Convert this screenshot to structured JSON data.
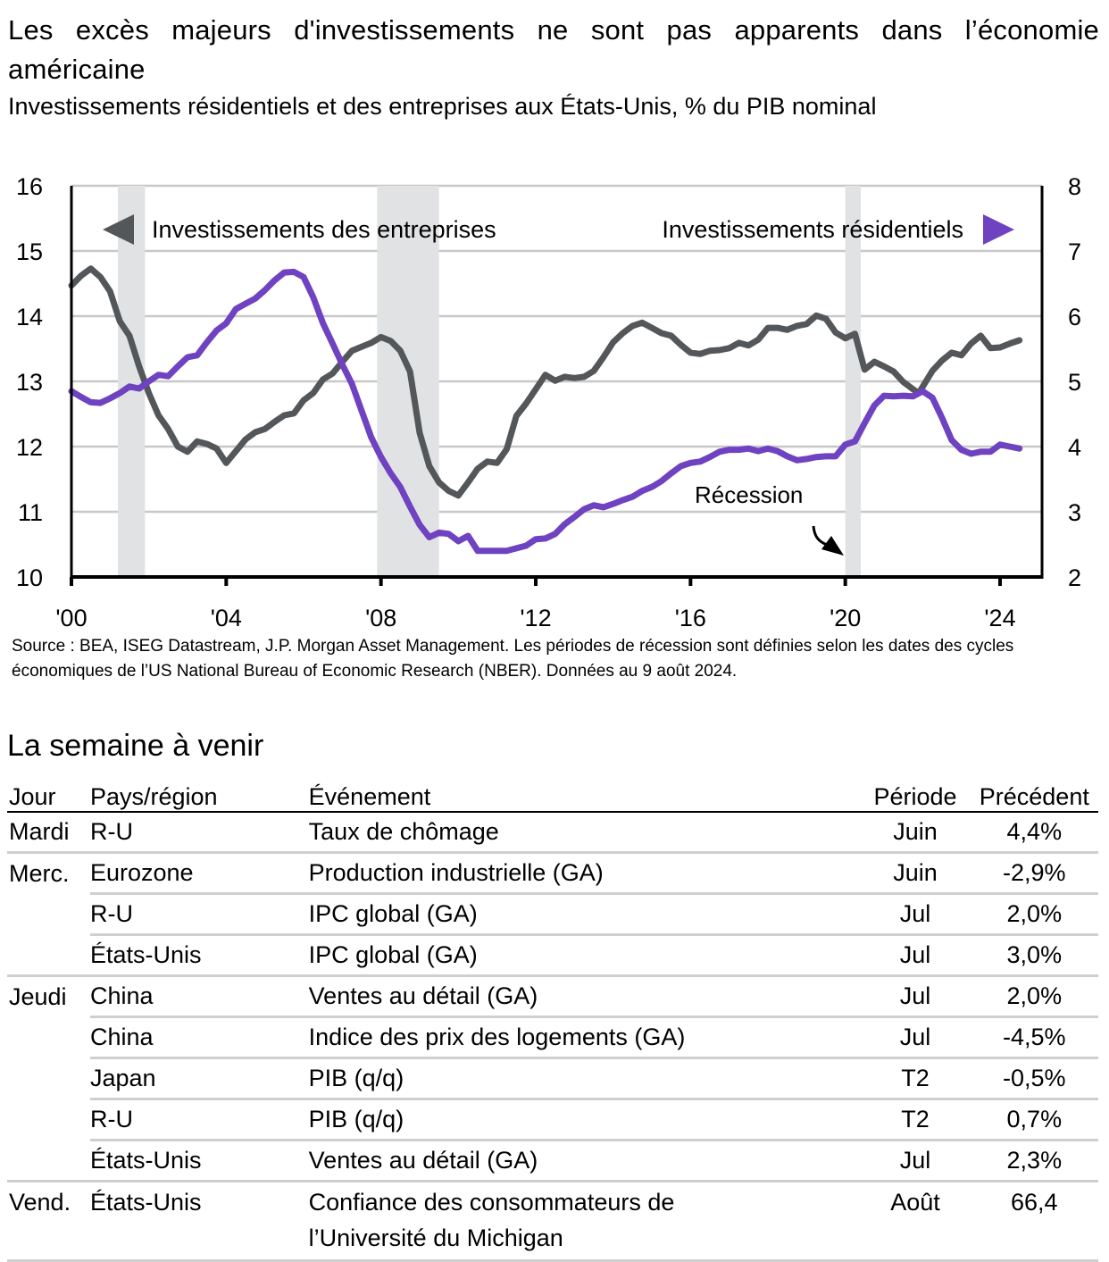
{
  "title": "Les excès majeurs d'investissements ne sont pas apparents dans l’économie américaine",
  "subtitle": "Investissements résidentiels et des entreprises aux États-Unis, % du PIB nominal",
  "source": "Source : BEA, ISEG Datastream, J.P. Morgan Asset Management. Les périodes de récession sont définies selon les dates des cycles économiques de l’US National Bureau of Economic Research (NBER). Données au 9 août 2024.",
  "chart_data": {
    "type": "line",
    "title": "Les excès majeurs d'investissements ne sont pas apparents dans l’économie américaine",
    "subtitle": "Investissements résidentiels et des entreprises aux États-Unis, % du PIB nominal",
    "xlabel": "",
    "ylabel_left": "",
    "ylabel_right": "",
    "xlim": [
      2000,
      2025
    ],
    "x_ticks": [
      2000,
      2004,
      2008,
      2012,
      2016,
      2020,
      2024
    ],
    "x_tick_labels": [
      "'00",
      "'04",
      "'08",
      "'12",
      "'16",
      "'20",
      "'24"
    ],
    "ylim_left": [
      10,
      16
    ],
    "y_ticks_left": [
      10,
      11,
      12,
      13,
      14,
      15,
      16
    ],
    "ylim_right": [
      2,
      8
    ],
    "y_ticks_right": [
      2,
      3,
      4,
      5,
      6,
      7,
      8
    ],
    "grid": true,
    "recession_label": "Récession",
    "recessions": [
      [
        2001.2,
        2001.9
      ],
      [
        2007.9,
        2009.5
      ],
      [
        2020.0,
        2020.4
      ]
    ],
    "colors": {
      "business": "#54575a",
      "residential": "#6f42c1",
      "recession": "#e1e2e4"
    },
    "series": [
      {
        "name": "Investissements des entreprises",
        "axis": "left",
        "legend_marker": "left-triangle",
        "x": [
          2000.0,
          2000.25,
          2000.5,
          2000.75,
          2001.0,
          2001.25,
          2001.5,
          2001.75,
          2002.0,
          2002.25,
          2002.5,
          2002.75,
          2003.0,
          2003.25,
          2003.5,
          2003.75,
          2004.0,
          2004.25,
          2004.5,
          2004.75,
          2005.0,
          2005.25,
          2005.5,
          2005.75,
          2006.0,
          2006.25,
          2006.5,
          2006.75,
          2007.0,
          2007.25,
          2007.5,
          2007.75,
          2008.0,
          2008.25,
          2008.5,
          2008.75,
          2009.0,
          2009.25,
          2009.5,
          2009.75,
          2010.0,
          2010.25,
          2010.5,
          2010.75,
          2011.0,
          2011.25,
          2011.5,
          2011.75,
          2012.0,
          2012.25,
          2012.5,
          2012.75,
          2013.0,
          2013.25,
          2013.5,
          2013.75,
          2014.0,
          2014.25,
          2014.5,
          2014.75,
          2015.0,
          2015.25,
          2015.5,
          2015.75,
          2016.0,
          2016.25,
          2016.5,
          2016.75,
          2017.0,
          2017.25,
          2017.5,
          2017.75,
          2018.0,
          2018.25,
          2018.5,
          2018.75,
          2019.0,
          2019.25,
          2019.5,
          2019.75,
          2020.0,
          2020.25,
          2020.5,
          2020.75,
          2021.0,
          2021.25,
          2021.5,
          2021.75,
          2021.9,
          2022.25,
          2022.5,
          2022.75,
          2023.0,
          2023.25,
          2023.5,
          2023.75,
          2024.0,
          2024.25,
          2024.5
        ],
        "values": [
          14.47,
          14.62,
          14.73,
          14.6,
          14.38,
          13.92,
          13.7,
          13.23,
          12.82,
          12.48,
          12.27,
          12.0,
          11.92,
          12.08,
          12.04,
          11.97,
          11.75,
          11.93,
          12.11,
          12.22,
          12.27,
          12.38,
          12.48,
          12.51,
          12.71,
          12.82,
          13.03,
          13.12,
          13.3,
          13.47,
          13.53,
          13.59,
          13.68,
          13.62,
          13.47,
          13.15,
          12.21,
          11.7,
          11.45,
          11.32,
          11.25,
          11.45,
          11.66,
          11.77,
          11.75,
          11.96,
          12.47,
          12.66,
          12.88,
          13.1,
          13.01,
          13.07,
          13.05,
          13.07,
          13.16,
          13.37,
          13.6,
          13.74,
          13.85,
          13.9,
          13.82,
          13.74,
          13.7,
          13.56,
          13.44,
          13.42,
          13.47,
          13.48,
          13.51,
          13.59,
          13.55,
          13.64,
          13.82,
          13.82,
          13.79,
          13.85,
          13.88,
          14.01,
          13.96,
          13.75,
          13.66,
          13.73,
          13.18,
          13.3,
          13.23,
          13.15,
          12.99,
          12.88,
          12.82,
          13.16,
          13.32,
          13.44,
          13.4,
          13.58,
          13.7,
          13.51,
          13.52,
          13.58,
          13.63
        ]
      },
      {
        "name": "Investissements résidentiels",
        "axis": "right",
        "legend_marker": "right-triangle",
        "x": [
          2000.0,
          2000.25,
          2000.5,
          2000.75,
          2001.0,
          2001.25,
          2001.5,
          2001.75,
          2002.0,
          2002.25,
          2002.5,
          2002.75,
          2003.0,
          2003.25,
          2003.5,
          2003.75,
          2004.0,
          2004.25,
          2004.5,
          2004.75,
          2005.0,
          2005.25,
          2005.5,
          2005.75,
          2006.0,
          2006.25,
          2006.5,
          2006.75,
          2007.0,
          2007.25,
          2007.5,
          2007.75,
          2008.0,
          2008.25,
          2008.5,
          2008.75,
          2009.0,
          2009.25,
          2009.5,
          2009.75,
          2010.0,
          2010.25,
          2010.5,
          2010.75,
          2011.0,
          2011.25,
          2011.5,
          2011.75,
          2012.0,
          2012.25,
          2012.5,
          2012.75,
          2013.0,
          2013.25,
          2013.5,
          2013.75,
          2014.0,
          2014.25,
          2014.5,
          2014.75,
          2015.0,
          2015.25,
          2015.5,
          2015.75,
          2016.0,
          2016.25,
          2016.5,
          2016.75,
          2017.0,
          2017.25,
          2017.5,
          2017.75,
          2018.0,
          2018.25,
          2018.5,
          2018.75,
          2019.0,
          2019.25,
          2019.5,
          2019.75,
          2020.0,
          2020.25,
          2020.5,
          2020.75,
          2021.0,
          2021.25,
          2021.5,
          2021.75,
          2022.0,
          2022.25,
          2022.5,
          2022.75,
          2023.0,
          2023.25,
          2023.5,
          2023.75,
          2024.0,
          2024.25,
          2024.5
        ],
        "values": [
          4.85,
          4.76,
          4.68,
          4.67,
          4.74,
          4.82,
          4.92,
          4.89,
          5.0,
          5.1,
          5.08,
          5.23,
          5.37,
          5.4,
          5.6,
          5.78,
          5.89,
          6.11,
          6.19,
          6.27,
          6.4,
          6.55,
          6.67,
          6.68,
          6.6,
          6.29,
          5.89,
          5.58,
          5.26,
          4.96,
          4.55,
          4.14,
          3.84,
          3.59,
          3.38,
          3.08,
          2.8,
          2.61,
          2.68,
          2.66,
          2.55,
          2.63,
          2.4,
          2.4,
          2.4,
          2.4,
          2.44,
          2.48,
          2.58,
          2.59,
          2.66,
          2.81,
          2.92,
          3.04,
          3.1,
          3.07,
          3.12,
          3.18,
          3.23,
          3.32,
          3.38,
          3.47,
          3.59,
          3.7,
          3.75,
          3.77,
          3.84,
          3.92,
          3.95,
          3.95,
          3.97,
          3.93,
          3.97,
          3.93,
          3.85,
          3.79,
          3.81,
          3.84,
          3.85,
          3.85,
          4.03,
          4.08,
          4.36,
          4.63,
          4.78,
          4.77,
          4.78,
          4.77,
          4.85,
          4.75,
          4.44,
          4.1,
          3.95,
          3.89,
          3.92,
          3.92,
          4.03,
          4.0,
          3.97
        ]
      }
    ]
  },
  "week": {
    "title": "La semaine à venir",
    "headers": {
      "day": "Jour",
      "country": "Pays/région",
      "event": "Événement",
      "period": "Période",
      "previous": "Précédent"
    },
    "rows": [
      {
        "day": "Mardi",
        "country": "R-U",
        "event": "Taux de chômage",
        "period": "Juin",
        "previous": "4,4%"
      },
      {
        "day": "Merc.",
        "country": "Eurozone",
        "event": "Production industrielle (GA)",
        "period": "Juin",
        "previous": "-2,9%"
      },
      {
        "day": "",
        "country": "R-U",
        "event": "IPC global (GA)",
        "period": "Jul",
        "previous": "2,0%"
      },
      {
        "day": "",
        "country": "États-Unis",
        "event": "IPC global (GA)",
        "period": "Jul",
        "previous": "3,0%"
      },
      {
        "day": "Jeudi",
        "country": "China",
        "event": "Ventes au détail (GA)",
        "period": "Jul",
        "previous": "2,0%"
      },
      {
        "day": "",
        "country": "China",
        "event": "Indice des prix des logements (GA)",
        "period": "Jul",
        "previous": "-4,5%"
      },
      {
        "day": "",
        "country": "Japan",
        "event": "PIB (q/q)",
        "period": "T2",
        "previous": "-0,5%"
      },
      {
        "day": "",
        "country": "R-U",
        "event": "PIB (q/q)",
        "period": "T2",
        "previous": "0,7%"
      },
      {
        "day": "",
        "country": "États-Unis",
        "event": "Ventes au détail (GA)",
        "period": "Jul",
        "previous": "2,3%"
      },
      {
        "day": "Vend.",
        "country": "États-Unis",
        "event": "Confiance des consommateurs de l’Université du Michigan",
        "period": "Août",
        "previous": "66,4"
      }
    ]
  }
}
